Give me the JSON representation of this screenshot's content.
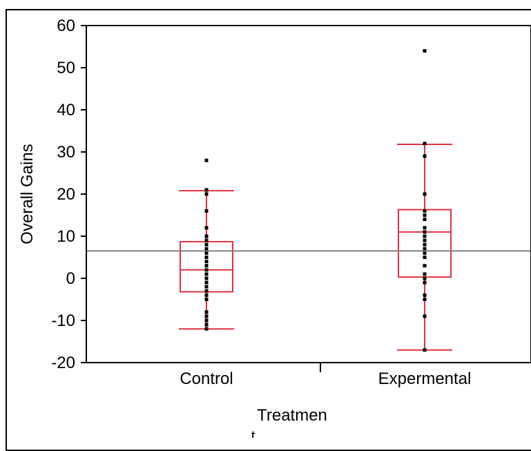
{
  "chart_data": {
    "type": "box",
    "title": "",
    "xlabel": "Treatmen",
    "xlabel_trailing": "t",
    "ylabel": "Overall Gains",
    "ylim": [
      -20,
      60
    ],
    "yticks": [
      -20,
      -10,
      0,
      10,
      20,
      30,
      40,
      50,
      60
    ],
    "categories": [
      "Control",
      "Expermental"
    ],
    "grand_mean": 6.5,
    "box_color": "#e0303f",
    "mean_line_color": "#808080",
    "point_color": "#000000",
    "series": [
      {
        "category": "Control",
        "whisker_low": -12,
        "q1": -3.2,
        "median": 2,
        "q3": 8.7,
        "whisker_high": 20.8,
        "points": [
          28,
          21,
          20,
          16,
          12,
          10,
          9,
          8,
          7,
          6,
          5,
          4,
          3,
          2,
          1,
          0,
          -1,
          -2,
          -3,
          -4,
          -5,
          -8,
          -9,
          -10,
          -11,
          -12
        ]
      },
      {
        "category": "Expermental",
        "whisker_low": -17,
        "q1": 0.3,
        "median": 11,
        "q3": 16.3,
        "whisker_high": 31.8,
        "points": [
          54,
          32,
          29,
          20,
          16,
          15,
          14,
          12,
          11,
          10,
          9,
          8,
          7,
          6,
          5,
          3,
          1,
          0,
          -1,
          -4,
          -5,
          -9,
          -17
        ]
      }
    ]
  }
}
